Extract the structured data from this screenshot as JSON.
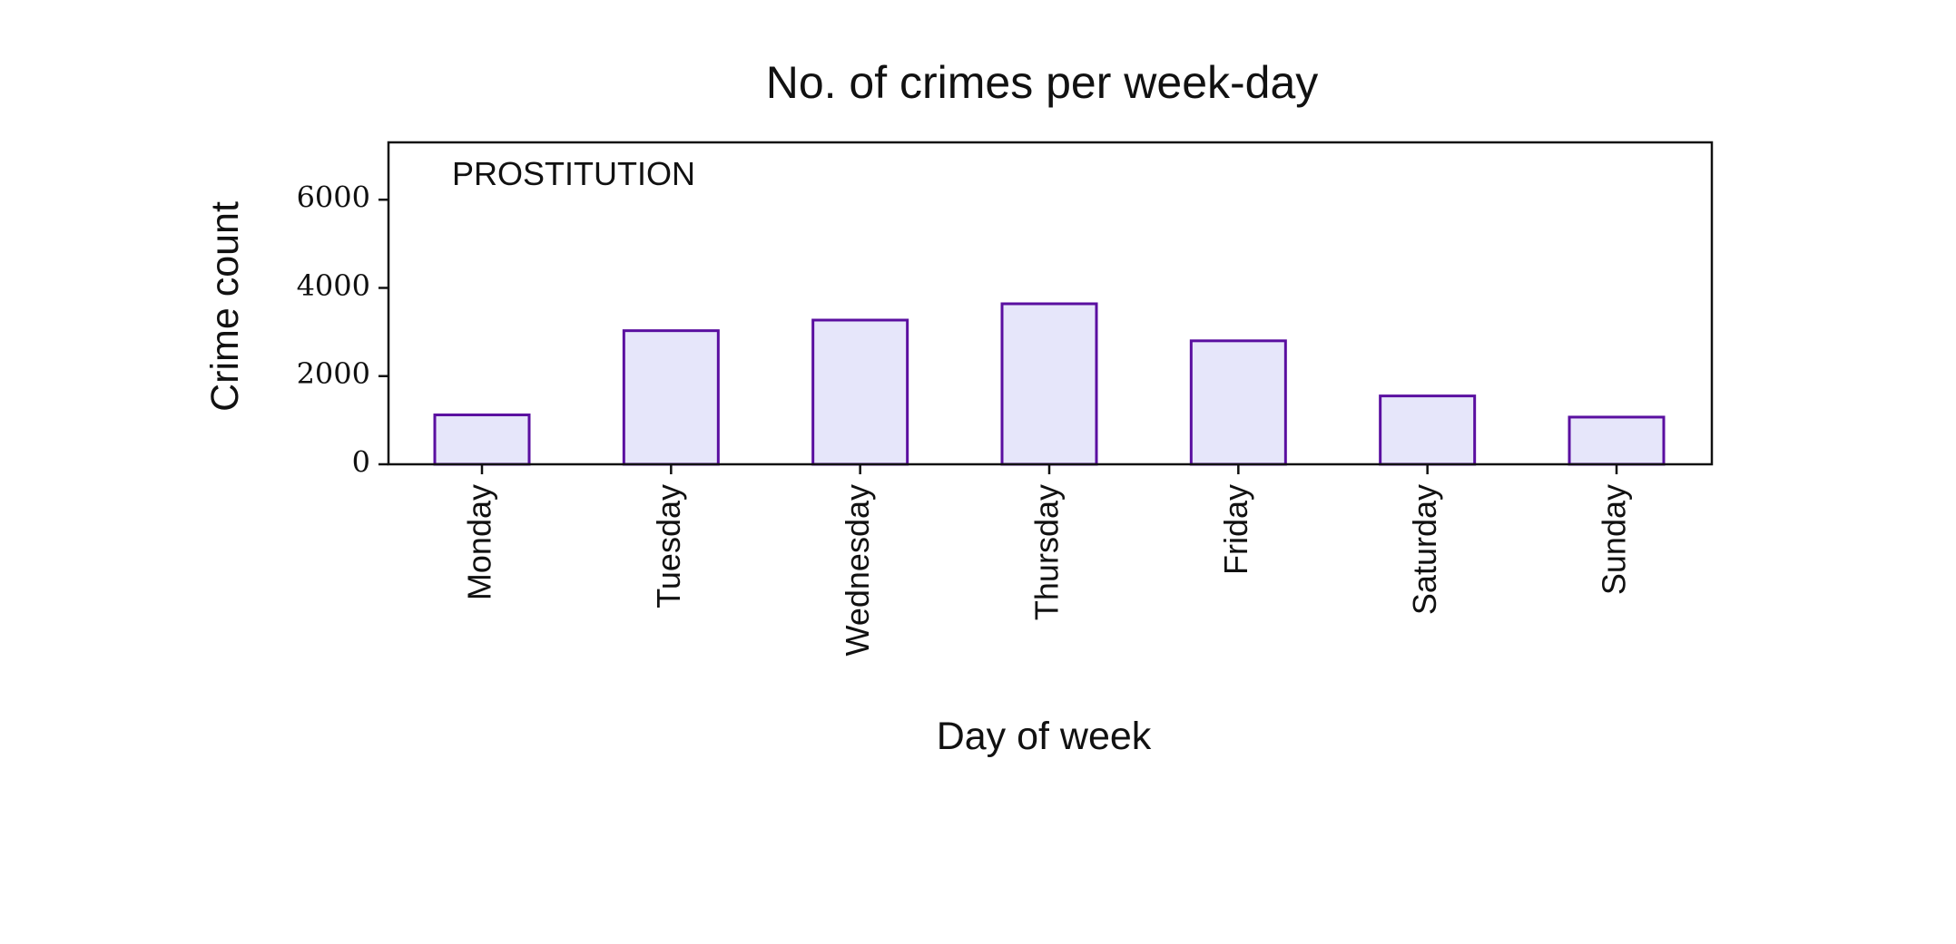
{
  "chart_data": {
    "type": "bar",
    "title": "No. of crimes per week-day",
    "xlabel": "Day of week",
    "ylabel": "Crime count",
    "annotation": "PROSTITUTION",
    "categories": [
      "Monday",
      "Tuesday",
      "Wednesday",
      "Thursday",
      "Friday",
      "Saturday",
      "Sunday"
    ],
    "values": [
      1120,
      3030,
      3270,
      3640,
      2800,
      1550,
      1070
    ],
    "ylim": [
      0,
      7300
    ],
    "yticks": [
      0,
      2000,
      4000,
      6000
    ],
    "ytick_labels": [
      "0",
      "2000",
      "4000",
      "6000"
    ],
    "grid": false,
    "legend": "none",
    "colors": {
      "bar_fill": "#e6e6fa",
      "bar_edge": "#5a0fa0",
      "axes": "#111111"
    }
  }
}
